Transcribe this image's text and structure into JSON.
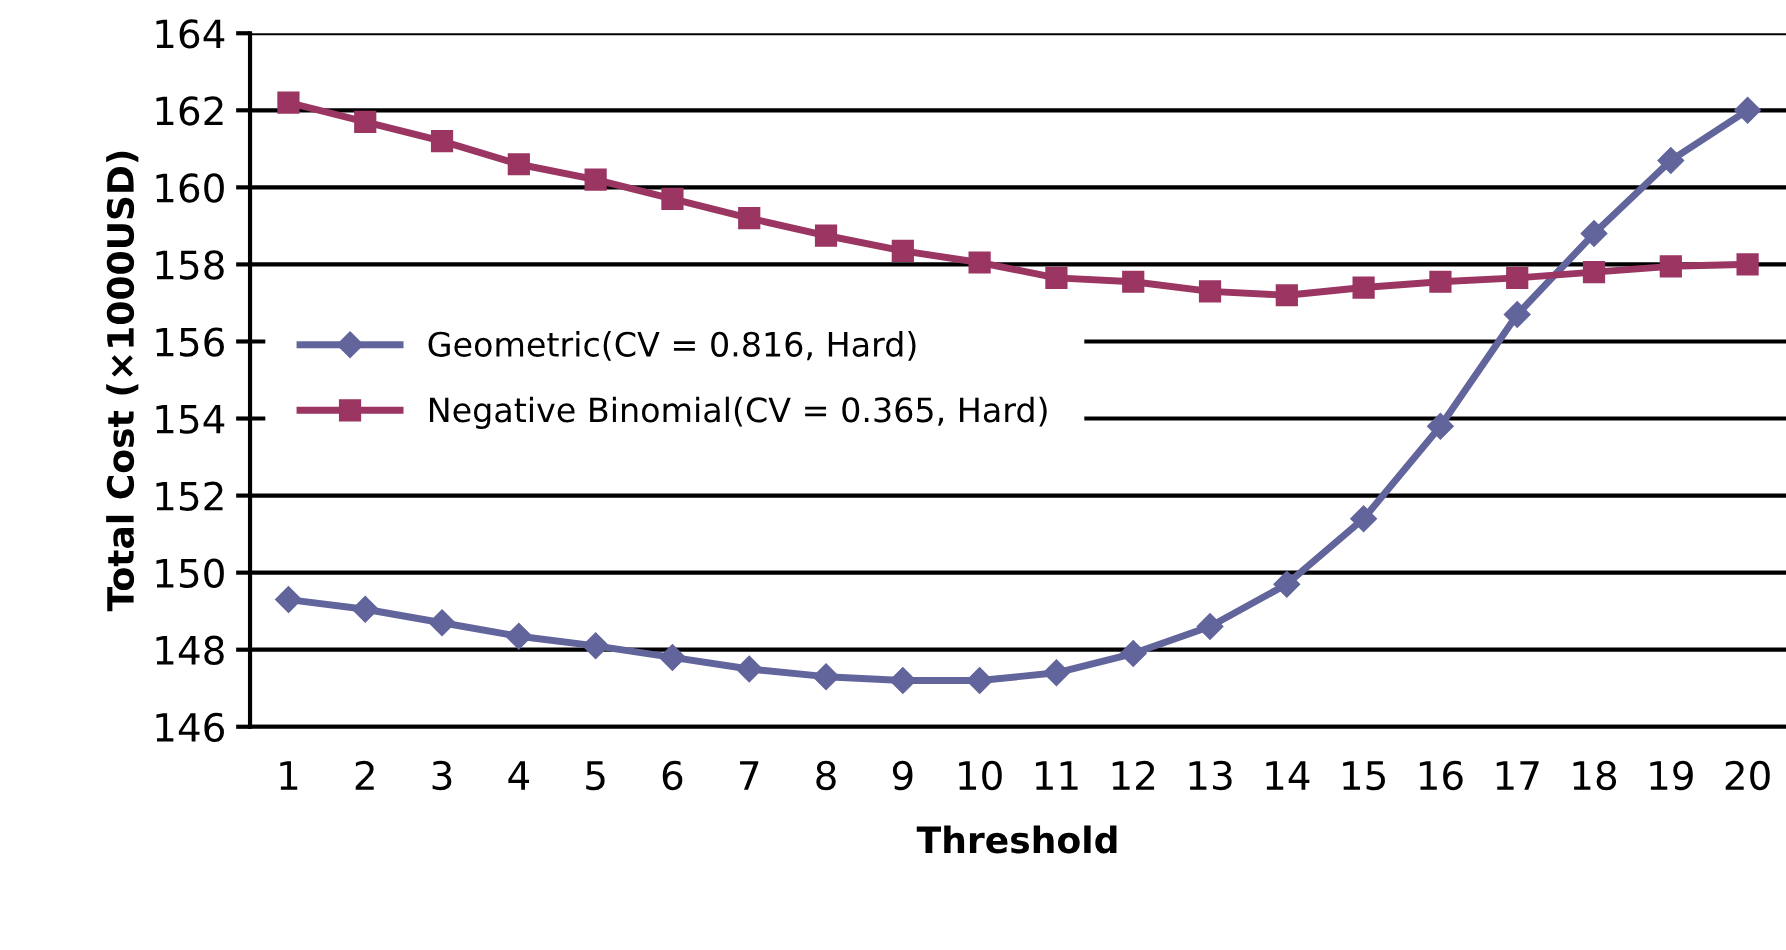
{
  "chart_data": {
    "type": "line",
    "xlabel": "Threshold",
    "ylabel": "Total Cost (×1000USD)",
    "categories": [
      "1",
      "2",
      "3",
      "4",
      "5",
      "6",
      "7",
      "8",
      "9",
      "10",
      "11",
      "12",
      "13",
      "14",
      "15",
      "16",
      "17",
      "18",
      "19",
      "20"
    ],
    "series": [
      {
        "name": "Geometric(CV = 0.816, Hard)",
        "color": "#62649c",
        "marker": "diamond",
        "values": [
          149.3,
          149.05,
          148.7,
          148.35,
          148.1,
          147.8,
          147.5,
          147.3,
          147.2,
          147.2,
          147.4,
          147.9,
          148.6,
          149.7,
          151.4,
          153.8,
          156.7,
          158.8,
          160.7,
          162.0
        ]
      },
      {
        "name": "Negative Binomial(CV = 0.365, Hard)",
        "color": "#9b3562",
        "marker": "square",
        "values": [
          162.2,
          161.7,
          161.2,
          160.6,
          160.2,
          159.7,
          159.2,
          158.75,
          158.35,
          158.05,
          157.65,
          157.55,
          157.3,
          157.2,
          157.4,
          157.55,
          157.65,
          157.8,
          157.95,
          158.0
        ]
      }
    ],
    "ylim": [
      146,
      164
    ],
    "yticks": [
      146,
      148,
      150,
      152,
      154,
      156,
      158,
      160,
      162,
      164
    ],
    "grid": "y",
    "legend": "left",
    "line_style": "solid"
  }
}
